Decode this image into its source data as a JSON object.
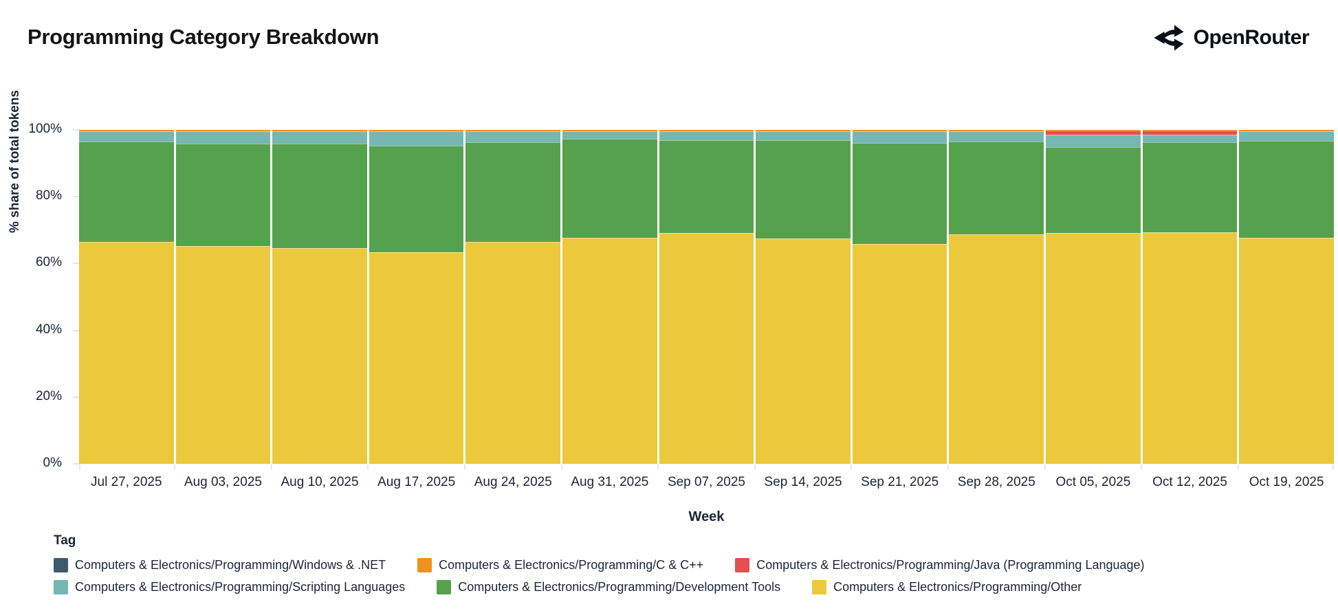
{
  "page": {
    "title": "Programming Category Breakdown",
    "brand": "OpenRouter"
  },
  "chart_data": {
    "type": "bar",
    "stacked": true,
    "normalized": "percent",
    "title": "Programming Category Breakdown",
    "xlabel": "Week",
    "ylabel": "% share of total tokens",
    "ylim": [
      0,
      100
    ],
    "yticks": [
      0,
      20,
      40,
      60,
      80,
      100
    ],
    "ytick_suffix": "%",
    "grid": false,
    "legend_position": "bottom",
    "legend_title": "Tag",
    "categories": [
      "Jul 27, 2025",
      "Aug 03, 2025",
      "Aug 10, 2025",
      "Aug 17, 2025",
      "Aug 24, 2025",
      "Aug 31, 2025",
      "Sep 07, 2025",
      "Sep 14, 2025",
      "Sep 21, 2025",
      "Sep 28, 2025",
      "Oct 05, 2025",
      "Oct 12, 2025",
      "Oct 19, 2025"
    ],
    "series": [
      {
        "name": "Computers & Electronics/Programming/Other",
        "color": "#ECC83D",
        "values": [
          66.4,
          65.2,
          64.7,
          63.4,
          66.4,
          67.8,
          69.2,
          67.4,
          65.8,
          68.7,
          69.2,
          69.3,
          67.8
        ]
      },
      {
        "name": "Computers & Electronics/Programming/Development Tools",
        "color": "#55A14E",
        "values": [
          30.2,
          30.7,
          31.2,
          31.9,
          30.0,
          29.5,
          27.7,
          29.5,
          30.2,
          27.8,
          25.7,
          27.0,
          29.0
        ]
      },
      {
        "name": "Computers & Electronics/Programming/Scripting Languages",
        "color": "#74B7B3",
        "values": [
          3.0,
          3.7,
          3.7,
          4.3,
          3.2,
          2.3,
          2.7,
          2.7,
          3.6,
          3.1,
          3.6,
          2.3,
          2.8
        ]
      },
      {
        "name": "Computers & Electronics/Programming/Java (Programming Language)",
        "color": "#E2514D",
        "values": [
          0,
          0,
          0,
          0,
          0,
          0,
          0,
          0,
          0,
          0,
          1.3,
          1.2,
          0
        ]
      },
      {
        "name": "Computers & Electronics/Programming/C & C++",
        "color": "#F0911F",
        "values": [
          0.4,
          0.4,
          0.4,
          0.4,
          0.4,
          0.4,
          0.4,
          0.4,
          0.4,
          0.4,
          0.2,
          0.2,
          0.4
        ]
      },
      {
        "name": "Computers & Electronics/Programming/Windows & .NET",
        "color": "#3F5A6B",
        "pattern": true,
        "values": [
          0,
          0,
          0,
          0,
          0,
          0,
          0,
          0,
          0,
          0,
          0,
          0,
          0
        ]
      }
    ],
    "legend_rows": [
      [
        5,
        4,
        3
      ],
      [
        2,
        1,
        0
      ]
    ]
  }
}
